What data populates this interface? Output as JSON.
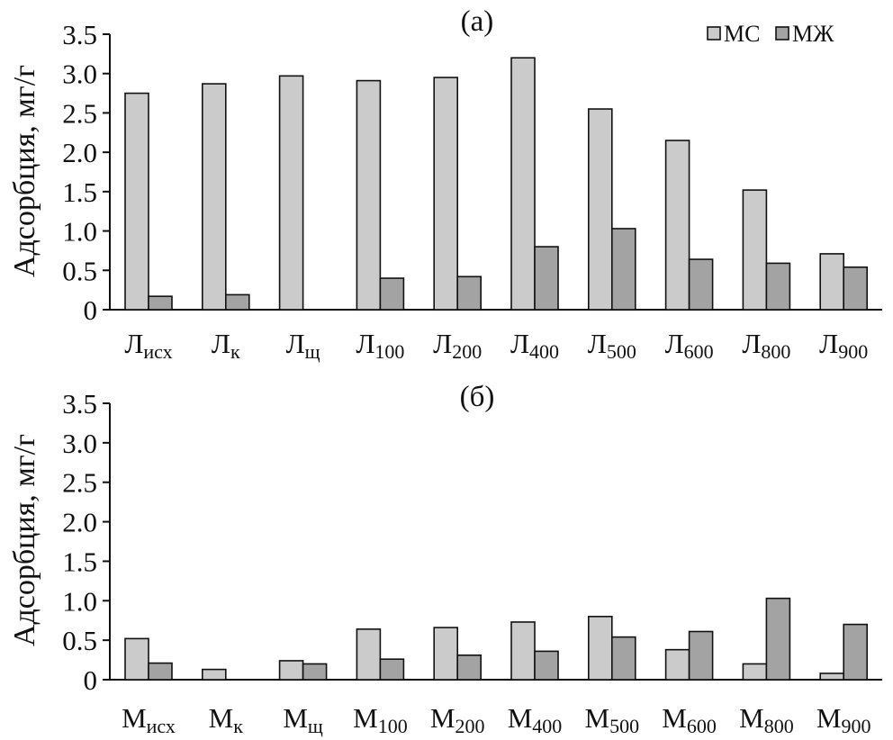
{
  "chart_data": [
    {
      "type": "bar",
      "panel_label": "(а)",
      "ylabel": "Адсорбция, мг/г",
      "xlabel": "",
      "ylim": [
        0,
        3.5
      ],
      "yticks": [
        "0",
        "0.5",
        "1.0",
        "1.5",
        "2.0",
        "2.5",
        "3.0",
        "3.5"
      ],
      "categories": [
        {
          "main": "Л",
          "sub": "исх"
        },
        {
          "main": "Л",
          "sub": "к"
        },
        {
          "main": "Л",
          "sub": "щ"
        },
        {
          "main": "Л",
          "sub": "100"
        },
        {
          "main": "Л",
          "sub": "200"
        },
        {
          "main": "Л",
          "sub": "400"
        },
        {
          "main": "Л",
          "sub": "500"
        },
        {
          "main": "Л",
          "sub": "600"
        },
        {
          "main": "Л",
          "sub": "800"
        },
        {
          "main": "Л",
          "sub": "900"
        }
      ],
      "series": [
        {
          "name": "МС",
          "color": "#cbcbcb",
          "values": [
            2.75,
            2.87,
            2.97,
            2.91,
            2.95,
            3.2,
            2.55,
            2.15,
            1.52,
            0.71
          ]
        },
        {
          "name": "МЖ",
          "color": "#a3a3a3",
          "values": [
            0.17,
            0.19,
            0.0,
            0.4,
            0.42,
            0.8,
            1.03,
            0.64,
            0.59,
            0.54
          ]
        }
      ],
      "legend": {
        "position": "top-right",
        "entries": [
          "МС",
          "МЖ"
        ]
      }
    },
    {
      "type": "bar",
      "panel_label": "(б)",
      "ylabel": "Адсорбция, мг/г",
      "xlabel": "",
      "ylim": [
        0,
        3.5
      ],
      "yticks": [
        "0",
        "0.5",
        "1.0",
        "1.5",
        "2.0",
        "2.5",
        "3.0",
        "3.5"
      ],
      "categories": [
        {
          "main": "М",
          "sub": "исх"
        },
        {
          "main": "М",
          "sub": "к"
        },
        {
          "main": "М",
          "sub": "щ"
        },
        {
          "main": "М",
          "sub": "100"
        },
        {
          "main": "М",
          "sub": "200"
        },
        {
          "main": "М",
          "sub": "400"
        },
        {
          "main": "М",
          "sub": "500"
        },
        {
          "main": "М",
          "sub": "600"
        },
        {
          "main": "М",
          "sub": "800"
        },
        {
          "main": "М",
          "sub": "900"
        }
      ],
      "series": [
        {
          "name": "МС",
          "color": "#cbcbcb",
          "values": [
            0.52,
            0.13,
            0.24,
            0.64,
            0.66,
            0.73,
            0.8,
            0.38,
            0.2,
            0.08
          ]
        },
        {
          "name": "МЖ",
          "color": "#a3a3a3",
          "values": [
            0.21,
            0.0,
            0.2,
            0.26,
            0.31,
            0.36,
            0.54,
            0.61,
            1.03,
            0.7
          ]
        }
      ]
    }
  ]
}
